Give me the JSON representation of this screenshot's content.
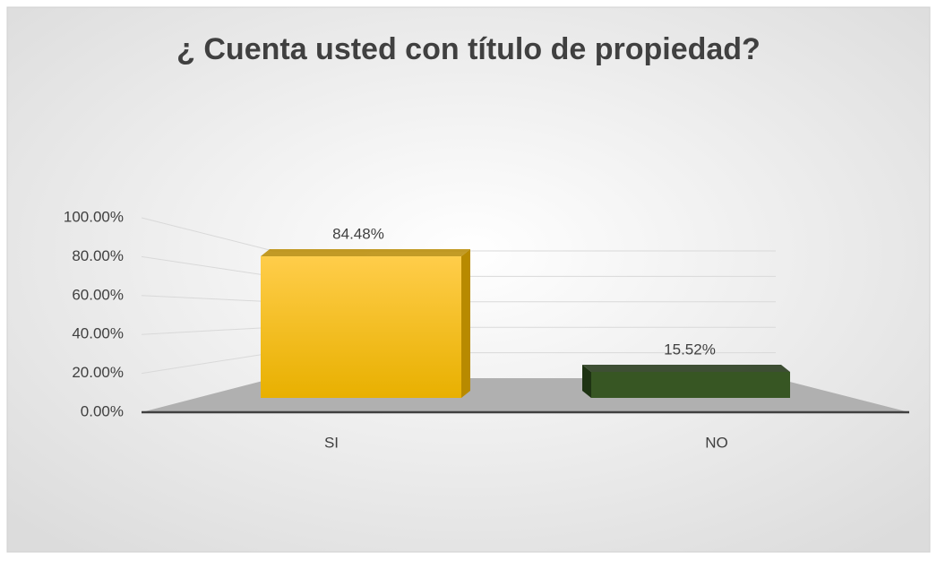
{
  "chart_data": {
    "type": "bar",
    "title": "¿ Cuenta usted con título de propiedad?",
    "categories": [
      "SI",
      "NO"
    ],
    "values": [
      84.48,
      15.52
    ],
    "value_labels": [
      "84.48%",
      "15.52%"
    ],
    "colors": [
      "#ffc000",
      "#375623"
    ],
    "ylim": [
      0,
      100
    ],
    "yticks": [
      {
        "value": 0,
        "label": "0.00%"
      },
      {
        "value": 20,
        "label": "20.00%"
      },
      {
        "value": 40,
        "label": "40.00%"
      },
      {
        "value": 60,
        "label": "60.00%"
      },
      {
        "value": 80,
        "label": "80.00%"
      },
      {
        "value": 100,
        "label": "100.00%"
      }
    ],
    "grid": true
  }
}
